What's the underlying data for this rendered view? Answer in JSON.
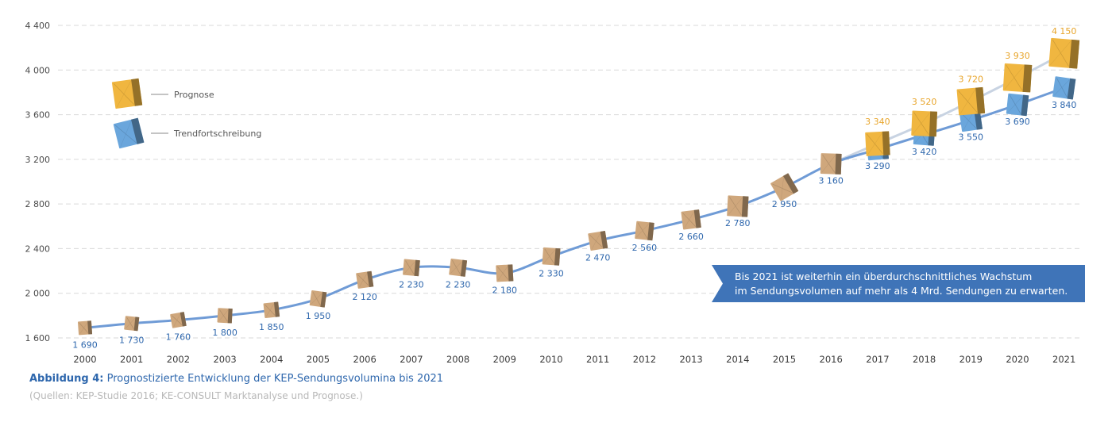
{
  "figure": {
    "caption_label": "Abbildung 4:",
    "caption_text": "Prognostizierte Entwicklung der KEP-Sendungsvolumina bis 2021",
    "source": "(Quellen: KEP-Studie 2016; KE-CONSULT Marktanalyse und Prognose.)"
  },
  "callout": {
    "line1": "Bis 2021 ist weiterhin ein überdurchschnittliches Wachstum",
    "line2": "im Sendungsvolumen auf mehr als 4 Mrd. Sendungen zu erwarten."
  },
  "colors": {
    "trend": "#6f9bd6",
    "forecast": "#c8d3e2",
    "grid": "#d9d9d9",
    "blue_label": "#2e67ad",
    "orange_label": "#e8a52b",
    "callout_bg": "#3f74b8",
    "box_brown": "#cfa77c",
    "box_orange": "#f0b640",
    "box_blue": "#6aa6dc"
  },
  "chart_data": {
    "type": "line",
    "title": "",
    "xlabel": "",
    "ylabel": "",
    "ylim": [
      1600,
      4400
    ],
    "yticks": [
      1600,
      2000,
      2400,
      2800,
      3200,
      3600,
      4000,
      4400
    ],
    "ytick_labels": [
      "1 600",
      "2 000",
      "2 400",
      "2 800",
      "3 200",
      "3 600",
      "4 000",
      "4 400"
    ],
    "grid": true,
    "legend_position": "top-left",
    "categories": [
      "2000",
      "2001",
      "2002",
      "2003",
      "2004",
      "2005",
      "2006",
      "2007",
      "2008",
      "2009",
      "2010",
      "2011",
      "2012",
      "2013",
      "2014",
      "2015",
      "2016",
      "2017",
      "2018",
      "2019",
      "2020",
      "2021"
    ],
    "series": [
      {
        "name": "Trendfortschreibung",
        "values": [
          1690,
          1730,
          1760,
          1800,
          1850,
          1950,
          2120,
          2230,
          2230,
          2180,
          2330,
          2470,
          2560,
          2660,
          2780,
          2950,
          3160,
          3290,
          3420,
          3550,
          3690,
          3840
        ],
        "labels": [
          "1 690",
          "1 730",
          "1 760",
          "1 800",
          "1 850",
          "1 950",
          "2 120",
          "2 230",
          "2 230",
          "2 180",
          "2 330",
          "2 470",
          "2 560",
          "2 660",
          "2 780",
          "2 950",
          "3 160",
          "3 290",
          "3 420",
          "3 550",
          "3 690",
          "3 840"
        ]
      },
      {
        "name": "Prognose",
        "values": [
          null,
          null,
          null,
          null,
          null,
          null,
          null,
          null,
          null,
          null,
          null,
          null,
          null,
          null,
          null,
          null,
          3160,
          3340,
          3520,
          3720,
          3930,
          4150
        ],
        "labels": [
          null,
          null,
          null,
          null,
          null,
          null,
          null,
          null,
          null,
          null,
          null,
          null,
          null,
          null,
          null,
          null,
          null,
          "3 340",
          "3 520",
          "3 720",
          "3 930",
          "4 150"
        ]
      }
    ]
  }
}
